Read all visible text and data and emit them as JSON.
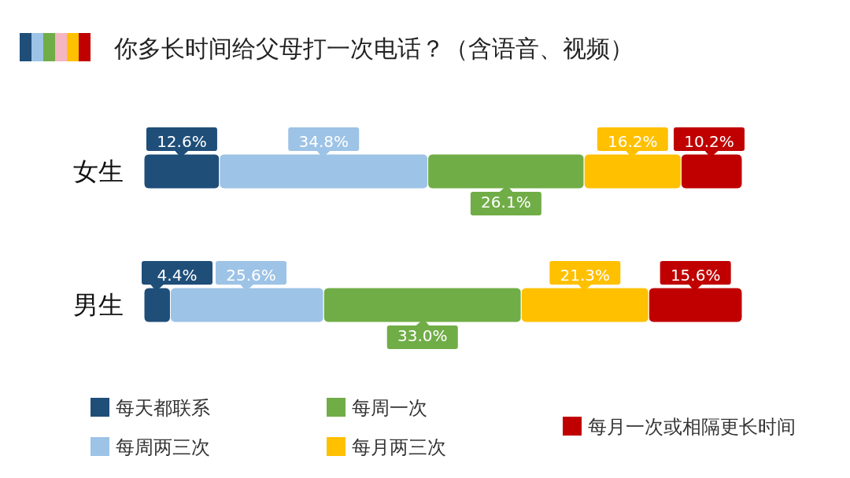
{
  "chart_data": {
    "type": "bar",
    "orientation": "horizontal",
    "stacked": true,
    "title": "你多长时间给父母打一次电话？（含语音、视频）",
    "categories": [
      "女生",
      "男生"
    ],
    "series": [
      {
        "name": "每天都联系",
        "color": "#1f4e79",
        "values": [
          12.6,
          4.4
        ],
        "value_labels": [
          "12.6%",
          "4.4%"
        ]
      },
      {
        "name": "每周两三次",
        "color": "#9dc3e6",
        "values": [
          34.8,
          25.6
        ],
        "value_labels": [
          "34.8%",
          "25.6%"
        ]
      },
      {
        "name": "每周一次",
        "color": "#70ad47",
        "values": [
          26.1,
          33.0
        ],
        "value_labels": [
          "26.1%",
          "33.0%"
        ]
      },
      {
        "name": "每月两三次",
        "color": "#ffc000",
        "values": [
          16.2,
          21.3
        ],
        "value_labels": [
          "16.2%",
          "21.3%"
        ]
      },
      {
        "name": "每月一次或相隔更长时间",
        "color": "#c00000",
        "values": [
          10.2,
          15.6
        ],
        "value_labels": [
          "10.2%",
          "15.6%"
        ]
      }
    ],
    "legend": "bottom"
  }
}
